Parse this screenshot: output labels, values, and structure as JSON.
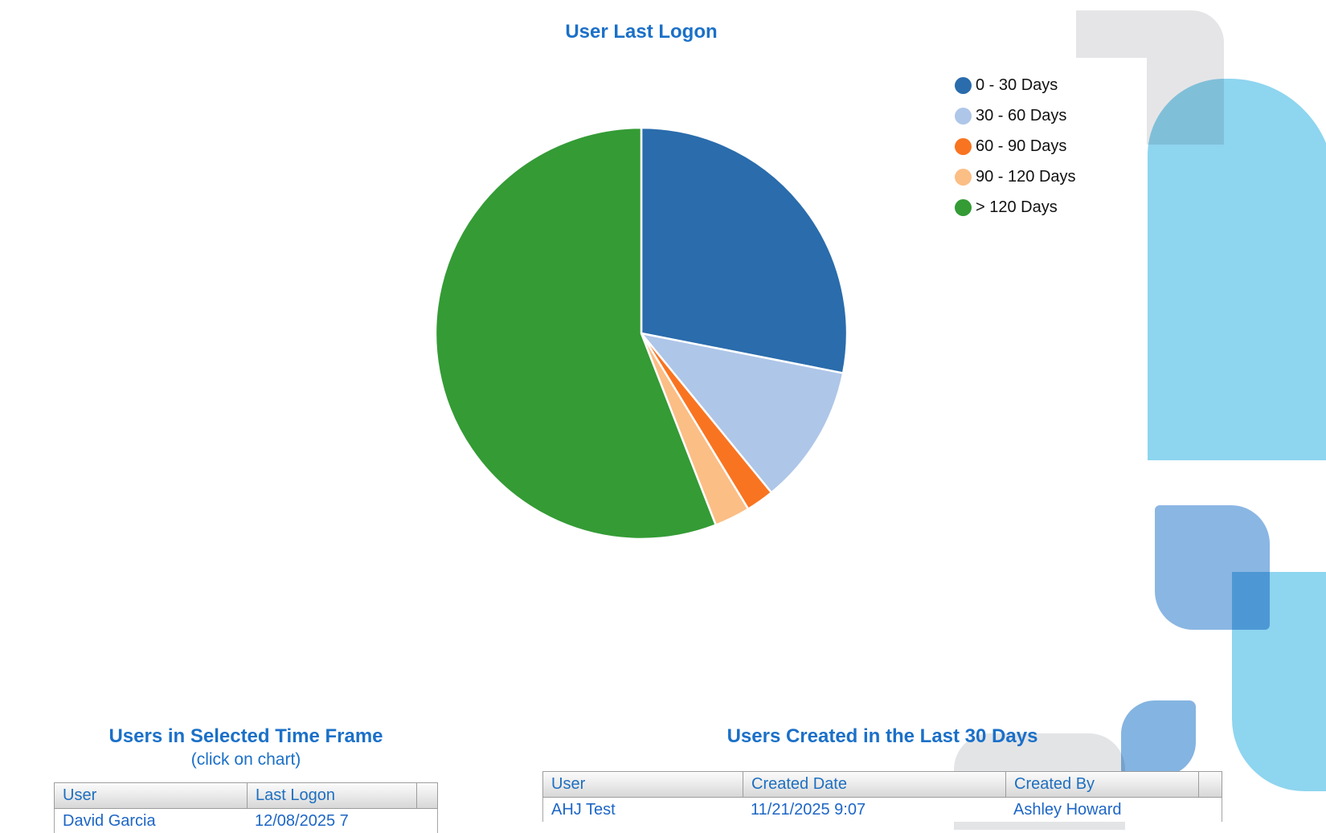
{
  "pie_chart": {
    "title": "User Last Logon",
    "title_color": "#1b70c8",
    "legend": [
      {
        "label": "0 - 30 Days",
        "color": "#2a6cac"
      },
      {
        "label": "30 - 60 Days",
        "color": "#aec6e8"
      },
      {
        "label": "60 - 90 Days",
        "color": "#f97420"
      },
      {
        "label": "90 - 120 Days",
        "color": "#fbbe85"
      },
      {
        "label": "> 120 Days",
        "color": "#349b35"
      }
    ]
  },
  "chart_data": {
    "type": "pie",
    "title": "User Last Logon",
    "categories": [
      "0 - 30 Days",
      "30 - 60 Days",
      "60 - 90 Days",
      "90 - 120 Days",
      "> 120 Days"
    ],
    "values": [
      28.1,
      11.0,
      2.2,
      2.8,
      55.9
    ],
    "unit": "percent",
    "colors": [
      "#2a6cac",
      "#aec6e8",
      "#f97420",
      "#fbbe85",
      "#349b35"
    ],
    "start_angle_deg": 0,
    "direction": "clockwise",
    "legend_position": "right",
    "slice_separator_color": "#ffffff"
  },
  "left_table": {
    "title": "Users in Selected Time Frame",
    "subtitle": "(click on chart)",
    "headers": [
      "User",
      "Last Logon",
      ""
    ],
    "rows": [
      [
        "David Garcia",
        "12/08/2025 7",
        ""
      ]
    ]
  },
  "right_table": {
    "title": "Users Created in the Last 30 Days",
    "headers": [
      "User",
      "Created Date",
      "Created By",
      ""
    ],
    "rows": [
      [
        "AHJ Test",
        "11/21/2025 9:07",
        "Ashley Howard",
        ""
      ]
    ]
  }
}
